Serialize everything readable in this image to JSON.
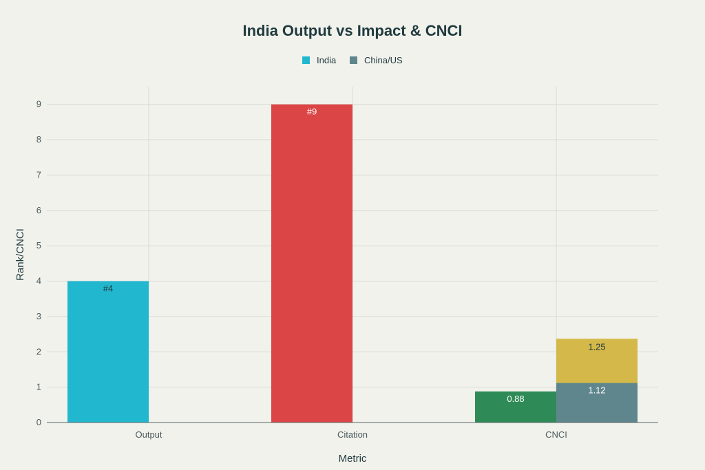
{
  "chart_data": {
    "type": "bar",
    "title": "India Output vs Impact & CNCI",
    "xlabel": "Metric",
    "ylabel": "Rank/CNCI",
    "categories": [
      "Output",
      "Citation",
      "CNCI"
    ],
    "ylim": [
      0,
      9.5
    ],
    "yticks": [
      0,
      1,
      2,
      3,
      4,
      5,
      6,
      7,
      8,
      9
    ],
    "grid": true,
    "legend_position": "top-center",
    "legend": [
      {
        "name": "India",
        "color": "#21b8cf"
      },
      {
        "name": "China/US",
        "color": "#5f868c"
      }
    ],
    "series": [
      {
        "name": "India",
        "values": [
          4,
          9,
          0.88
        ],
        "labels": [
          "#4",
          "#9",
          "0.88"
        ],
        "colors": [
          "#21b8cf",
          "#db4545",
          "#2e8b57"
        ],
        "label_colors": [
          "#1f3a3d",
          "#ffffff",
          "#ffffff"
        ]
      },
      {
        "name": "China/US",
        "values": [
          0,
          0,
          1.12
        ],
        "labels": [
          "",
          "",
          "1.12"
        ],
        "colors": [
          "#5f868c",
          "#5f868c",
          "#5f868c"
        ],
        "label_colors": [
          "#ffffff",
          "#ffffff",
          "#ffffff"
        ]
      },
      {
        "name": "",
        "stack_on": "China/US",
        "values": [
          0,
          0,
          1.25
        ],
        "labels": [
          "",
          "",
          "1.25"
        ],
        "colors": [
          "#d4b94a",
          "#d4b94a",
          "#d4b94a"
        ],
        "label_colors": [
          "#1f3a3d",
          "#1f3a3d",
          "#1f3a3d"
        ]
      }
    ]
  }
}
